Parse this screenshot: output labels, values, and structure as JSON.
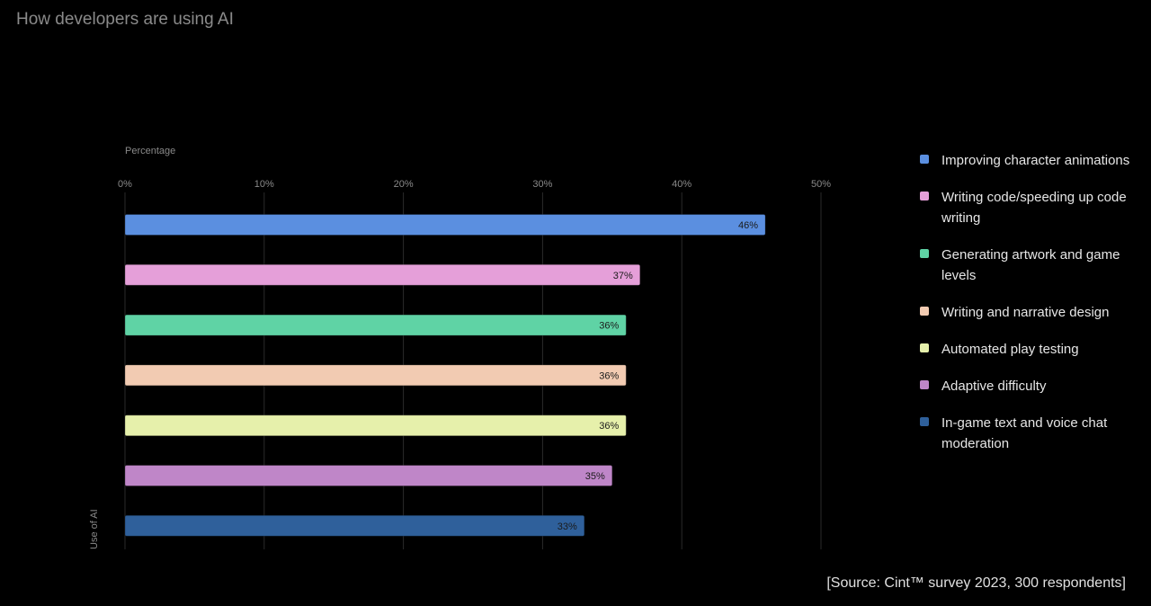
{
  "title": "How developers are using AI",
  "source": "[Source: Cint™ survey 2023, 300 respondents]",
  "chart_data": {
    "type": "bar",
    "orientation": "horizontal",
    "title": "How developers are using AI",
    "xlabel": "Percentage",
    "ylabel": "Use of AI",
    "xlim": [
      0,
      50
    ],
    "xticks": [
      0,
      10,
      20,
      30,
      40,
      50
    ],
    "xtick_labels": [
      "0%",
      "10%",
      "20%",
      "30%",
      "40%",
      "50%"
    ],
    "grid": true,
    "legend_position": "right",
    "categories": [
      "Improving character animations",
      "Writing code/speeding up code writing",
      "Generating artwork and game levels",
      "Writing and narrative design",
      "Automated play testing",
      "Adaptive difficulty",
      "In-game text and voice chat moderation"
    ],
    "values": [
      46,
      37,
      36,
      36,
      36,
      35,
      33
    ],
    "value_labels": [
      "46%",
      "37%",
      "36%",
      "36%",
      "36%",
      "35%",
      "33%"
    ],
    "colors": [
      "#5b8fe0",
      "#e59fd9",
      "#5fd3a5",
      "#f2cbb2",
      "#e6f0ab",
      "#bf86c8",
      "#2f609b"
    ]
  }
}
